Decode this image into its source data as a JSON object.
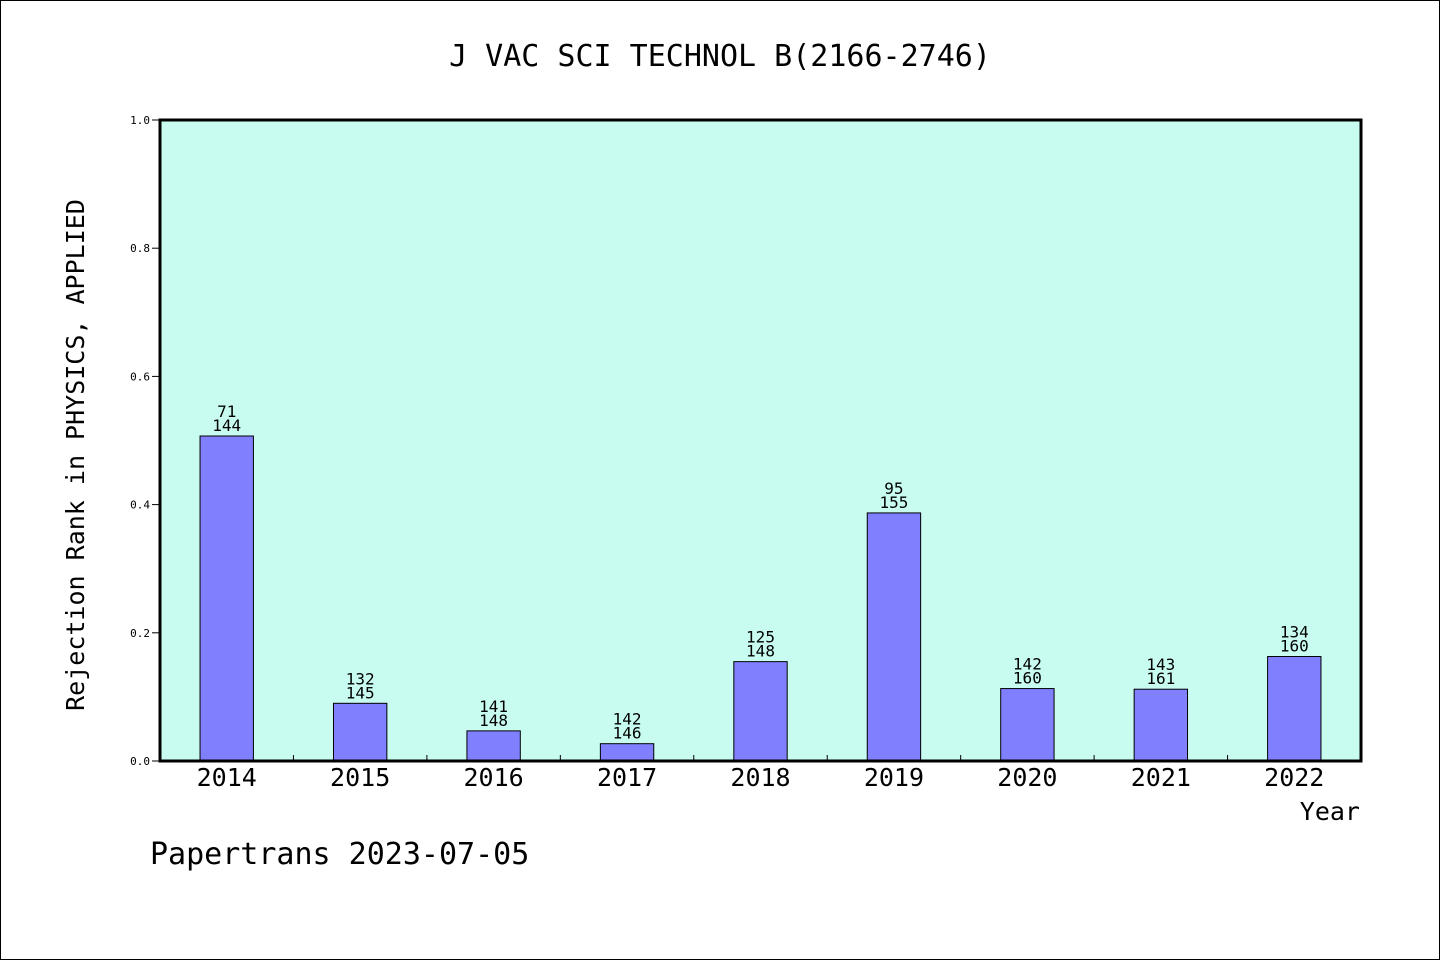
{
  "chart_data": {
    "type": "bar",
    "title": "J VAC SCI TECHNOL B(2166-2746)",
    "xlabel": "Year",
    "ylabel": "Rejection Rank in PHYSICS, APPLIED",
    "ylim": [
      0,
      1.0
    ],
    "yticks": [
      "0.0",
      "0.2",
      "0.4",
      "0.6",
      "0.8",
      "1.0"
    ],
    "grid": false,
    "categories": [
      "2014",
      "2015",
      "2016",
      "2017",
      "2018",
      "2019",
      "2020",
      "2021",
      "2022"
    ],
    "values": [
      0.507,
      0.09,
      0.047,
      0.027,
      0.155,
      0.387,
      0.113,
      0.112,
      0.163
    ],
    "labels": [
      {
        "rank": "71",
        "total": "144"
      },
      {
        "rank": "132",
        "total": "145"
      },
      {
        "rank": "141",
        "total": "148"
      },
      {
        "rank": "142",
        "total": "146"
      },
      {
        "rank": "125",
        "total": "148"
      },
      {
        "rank": "95",
        "total": "155"
      },
      {
        "rank": "142",
        "total": "160"
      },
      {
        "rank": "143",
        "total": "161"
      },
      {
        "rank": "134",
        "total": "160"
      }
    ],
    "colors": {
      "plot_background": "#c8fcf0",
      "bar_fill": "#8080ff",
      "bar_stroke": "#000000"
    }
  },
  "footer": "Papertrans 2023-07-05"
}
